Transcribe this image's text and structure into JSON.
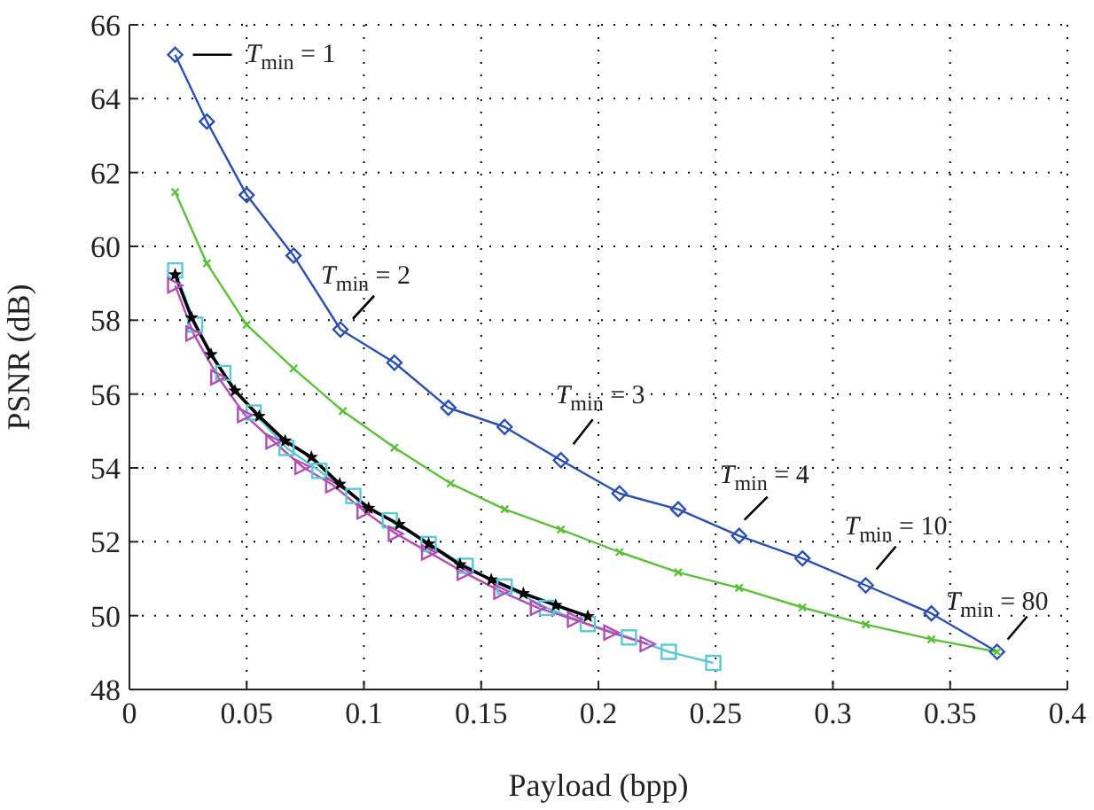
{
  "chart_data": {
    "type": "line",
    "xlabel": "Payload (bpp)",
    "ylabel": "PSNR (dB)",
    "xlim": [
      0,
      0.4
    ],
    "xticks": [
      0,
      0.05,
      0.1,
      0.15,
      0.2,
      0.25,
      0.3,
      0.35,
      0.4
    ],
    "ylim": [
      48,
      66
    ],
    "yticks": [
      48,
      50,
      52,
      54,
      56,
      58,
      60,
      62,
      64,
      66
    ],
    "grid": true,
    "legend": false,
    "line_style": "solid",
    "series": [
      {
        "color": "#2a4fb0",
        "marker": "diamond",
        "x": [
          0.0195,
          0.033,
          0.05,
          0.07,
          0.09,
          0.113,
          0.136,
          0.16,
          0.184,
          0.209,
          0.234,
          0.26,
          0.287,
          0.314,
          0.342,
          0.37
        ],
        "values": [
          65.19,
          63.38,
          61.39,
          59.75,
          57.75,
          56.85,
          55.63,
          55.11,
          54.21,
          53.31,
          52.88,
          52.16,
          51.55,
          50.82,
          50.06,
          49.02
        ]
      },
      {
        "color": "#5cbf3a",
        "marker": "cross",
        "x": [
          0.0195,
          0.033,
          0.05,
          0.07,
          0.091,
          0.113,
          0.137,
          0.16,
          0.184,
          0.209,
          0.234,
          0.26,
          0.287,
          0.314,
          0.342,
          0.37
        ],
        "values": [
          61.47,
          59.54,
          57.88,
          56.69,
          55.54,
          54.55,
          53.58,
          52.88,
          52.33,
          51.72,
          51.17,
          50.75,
          50.22,
          49.76,
          49.36,
          49.02
        ]
      },
      {
        "color": "#5bc8d6",
        "marker": "square",
        "x": [
          0.0195,
          0.028,
          0.04,
          0.053,
          0.067,
          0.081,
          0.0955,
          0.111,
          0.1276,
          0.1434,
          0.16,
          0.178,
          0.1955,
          0.213,
          0.23,
          0.249
        ],
        "values": [
          59.35,
          57.88,
          56.57,
          55.5,
          54.54,
          53.92,
          53.24,
          52.58,
          51.94,
          51.35,
          50.79,
          50.21,
          49.77,
          49.41,
          49.02,
          48.72
        ]
      },
      {
        "color": "#b34db3",
        "marker": "triangle",
        "x": [
          0.0195,
          0.0273,
          0.0379,
          0.0493,
          0.0614,
          0.0738,
          0.0869,
          0.1003,
          0.1136,
          0.1278,
          0.143,
          0.1586,
          0.1742,
          0.19,
          0.2055,
          0.221
        ],
        "values": [
          58.94,
          57.64,
          56.45,
          55.43,
          54.72,
          54.03,
          53.53,
          52.82,
          52.22,
          51.71,
          51.16,
          50.65,
          50.21,
          49.89,
          49.54,
          49.23
        ]
      },
      {
        "color": "#000000",
        "marker": "star",
        "x": [
          0.0195,
          0.0265,
          0.0348,
          0.045,
          0.0553,
          0.0664,
          0.0776,
          0.0897,
          0.102,
          0.115,
          0.1276,
          0.141,
          0.1543,
          0.168,
          0.1818,
          0.1955
        ],
        "values": [
          59.23,
          58.07,
          57.07,
          56.09,
          55.4,
          54.73,
          54.29,
          53.56,
          52.91,
          52.47,
          51.94,
          51.38,
          50.97,
          50.6,
          50.28,
          49.98
        ]
      }
    ],
    "annotations": [
      {
        "text": "T$_{min}$ = 1",
        "x": 0.0195,
        "y": 65.19
      },
      {
        "text": "T$_{min}$ = 2",
        "x": 0.09,
        "y": 57.75
      },
      {
        "text": "T$_{min}$ = 3",
        "x": 0.184,
        "y": 54.21
      },
      {
        "text": "T$_{min}$ = 4",
        "x": 0.26,
        "y": 52.16
      },
      {
        "text": "T$_{min}$ = 10",
        "x": 0.314,
        "y": 50.82
      },
      {
        "text": "T$_{min}$ = 80",
        "x": 0.37,
        "y": 49.02
      }
    ]
  }
}
